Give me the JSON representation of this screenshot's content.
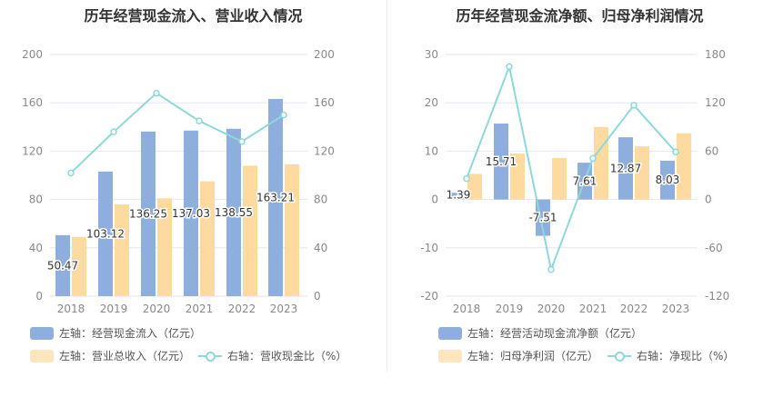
{
  "colors": {
    "bar1": "#8eaedd",
    "bar2": "#fddba0",
    "line": "#8fd8d8",
    "grid": "#e6e6ee",
    "axis_text": "#888888",
    "label_text": "#333333"
  },
  "chart_data": [
    {
      "type": "bar",
      "title": "历年经营现金流入、营业收入情况",
      "categories": [
        "2018",
        "2019",
        "2020",
        "2021",
        "2022",
        "2023"
      ],
      "left_axis": {
        "ticks": [
          0,
          40,
          80,
          120,
          160,
          200
        ],
        "range": [
          0,
          200
        ]
      },
      "right_axis": {
        "ticks": [
          0,
          40,
          80,
          120,
          160,
          200
        ],
        "range": [
          0,
          200
        ]
      },
      "series": [
        {
          "name": "左轴：经营现金流入（亿元）",
          "kind": "bar",
          "axis": "left",
          "color": "#8eaedd",
          "values": [
            50.47,
            103.12,
            136.25,
            137.03,
            138.55,
            163.21
          ],
          "labels": [
            "50.47",
            "103.12",
            "136.25",
            "137.03",
            "138.55",
            "163.21"
          ]
        },
        {
          "name": "左轴：营业总收入（亿元）",
          "kind": "bar",
          "axis": "left",
          "color": "#fddba0",
          "values": [
            49,
            76,
            81,
            95,
            108,
            109
          ]
        },
        {
          "name": "右轴：营收现金比（%）",
          "kind": "line",
          "axis": "right",
          "color": "#8fd8d8",
          "values": [
            102,
            136,
            168,
            145,
            128,
            150
          ]
        }
      ]
    },
    {
      "type": "bar",
      "title": "历年经营现金流净额、归母净利润情况",
      "categories": [
        "2018",
        "2019",
        "2020",
        "2021",
        "2022",
        "2023"
      ],
      "left_axis": {
        "ticks": [
          -20,
          -10,
          0,
          10,
          20,
          30
        ],
        "range": [
          -20,
          30
        ]
      },
      "right_axis": {
        "ticks": [
          -120,
          -60,
          0,
          60,
          120,
          180
        ],
        "range": [
          -120,
          180
        ]
      },
      "series": [
        {
          "name": "左轴：经营活动现金流净额（亿元）",
          "kind": "bar",
          "axis": "left",
          "color": "#8eaedd",
          "values": [
            1.39,
            15.71,
            -7.51,
            7.61,
            12.87,
            8.03
          ],
          "labels": [
            "1.39",
            "15.71",
            "-7.51",
            "7.61",
            "12.87",
            "8.03"
          ]
        },
        {
          "name": "左轴：归母净利润（亿元）",
          "kind": "bar",
          "axis": "left",
          "color": "#fddba0",
          "values": [
            5.3,
            9.5,
            8.6,
            15.0,
            11.0,
            13.7
          ]
        },
        {
          "name": "右轴：净现比（%）",
          "kind": "line",
          "axis": "right",
          "color": "#8fd8d8",
          "values": [
            26,
            165,
            -87,
            51,
            117,
            59
          ]
        }
      ]
    }
  ]
}
